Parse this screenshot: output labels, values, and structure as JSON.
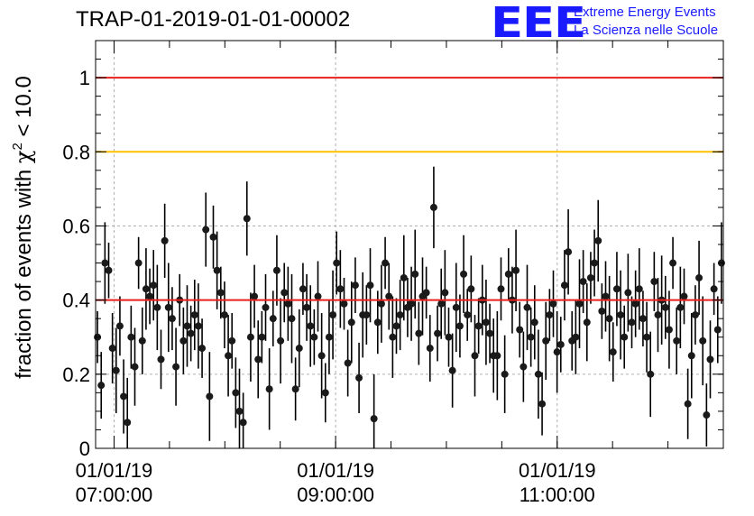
{
  "header": {
    "title": "TRAP-01-2019-01-01-00002",
    "logo_mark": "EEE",
    "logo_line1": "Extreme Energy Events",
    "logo_line2": "La Scienza nelle Scuole"
  },
  "chart_data": {
    "type": "scatter",
    "title": "TRAP-01-2019-01-01-00002",
    "xlabel": "",
    "ylabel": "fraction of events with χ² < 10.0",
    "ylabel_parts": {
      "text": "fraction of events with ",
      "symbol": "χ",
      "sup": "2",
      "tail": " < 10.0"
    },
    "xlim": [
      "2019-01-01 06:50",
      "2019-01-01 12:30"
    ],
    "ylim": [
      0,
      1.1
    ],
    "grid": true,
    "yticks": [
      {
        "value": 0,
        "label": "0"
      },
      {
        "value": 0.2,
        "label": "0.2"
      },
      {
        "value": 0.4,
        "label": "0.4"
      },
      {
        "value": 0.6,
        "label": "0.6"
      },
      {
        "value": 0.8,
        "label": "0.8"
      },
      {
        "value": 1.0,
        "label": "1"
      }
    ],
    "xticks": [
      {
        "value": "2019-01-01 07:00",
        "date": "01/01/19",
        "time": "07:00:00"
      },
      {
        "value": "2019-01-01 09:00",
        "date": "01/01/19",
        "time": "09:00:00"
      },
      {
        "value": "2019-01-01 11:00",
        "date": "01/01/19",
        "time": "11:00:00"
      }
    ],
    "reference_lines": [
      {
        "y": 1.0,
        "color": "#e8201e"
      },
      {
        "y": 0.8,
        "color": "#ffc000"
      },
      {
        "y": 0.4,
        "color": "#e8201e"
      }
    ],
    "series": [
      {
        "marker_color": "#1a1a1a",
        "error_bar_color": "#000000",
        "x_start": "2019-01-01 06:50",
        "x_end": "2019-01-01 12:30",
        "y": [
          0.3,
          0.17,
          0.5,
          0.48,
          0.27,
          0.21,
          0.33,
          0.14,
          0.07,
          0.3,
          0.22,
          0.5,
          0.29,
          0.43,
          0.41,
          0.44,
          0.38,
          0.24,
          0.56,
          0.38,
          0.35,
          0.22,
          0.4,
          0.29,
          0.33,
          0.31,
          0.36,
          0.33,
          0.27,
          0.59,
          0.14,
          0.57,
          0.48,
          0.42,
          0.36,
          0.25,
          0.29,
          0.15,
          0.1,
          0.07,
          0.62,
          0.3,
          0.41,
          0.24,
          0.3,
          0.38,
          0.16,
          0.35,
          0.48,
          0.29,
          0.42,
          0.39,
          0.35,
          0.16,
          0.27,
          0.43,
          0.38,
          0.33,
          0.3,
          0.41,
          0.25,
          0.15,
          0.3,
          0.36,
          0.5,
          0.43,
          0.39,
          0.23,
          0.34,
          0.44,
          0.19,
          0.36,
          0.36,
          0.44,
          0.08,
          0.34,
          0.39,
          0.5,
          0.41,
          0.3,
          0.33,
          0.36,
          0.46,
          0.38,
          0.39,
          0.47,
          0.31,
          0.41,
          0.42,
          0.27,
          0.65,
          0.31,
          0.39,
          0.42,
          0.3,
          0.21,
          0.38,
          0.33,
          0.47,
          0.36,
          0.43,
          0.25,
          0.33,
          0.4,
          0.34,
          0.31,
          0.25,
          0.25,
          0.43,
          0.2,
          0.47,
          0.4,
          0.48,
          0.32,
          0.22,
          0.38,
          0.3,
          0.34,
          0.2,
          0.12,
          0.29,
          0.36,
          0.39,
          0.26,
          0.28,
          0.44,
          0.53,
          0.29,
          0.3,
          0.39,
          0.45,
          0.34,
          0.46,
          0.5,
          0.56,
          0.37,
          0.41,
          0.35,
          0.26,
          0.43,
          0.36,
          0.3,
          0.42,
          0.34,
          0.39,
          0.43,
          0.35,
          0.3,
          0.2,
          0.45,
          0.36,
          0.4,
          0.38,
          0.32,
          0.5,
          0.29,
          0.38,
          0.41,
          0.12,
          0.25,
          0.36,
          0.46,
          0.29,
          0.09,
          0.24,
          0.43,
          0.32,
          0.5
        ]
      }
    ]
  }
}
